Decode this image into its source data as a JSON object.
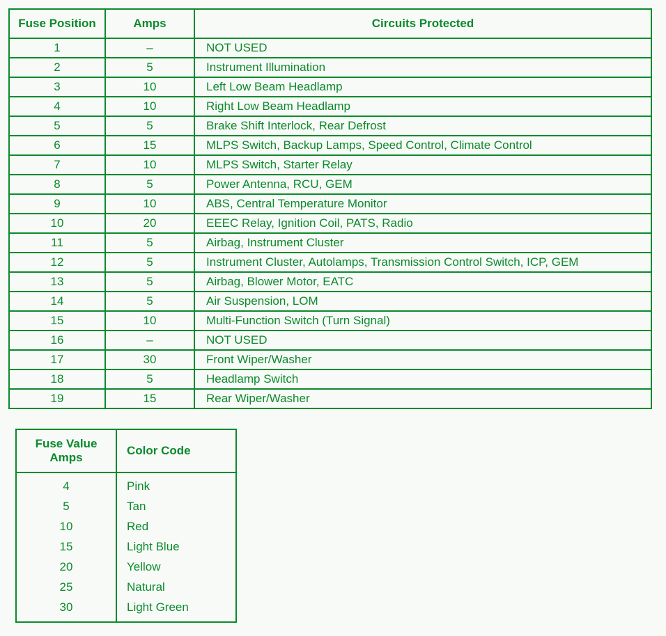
{
  "colors": {
    "border": "#0b8a2d",
    "text": "#0b8a2d",
    "background": "#f8faf7"
  },
  "mainTable": {
    "headers": {
      "position": "Fuse Position",
      "amps": "Amps",
      "circuits": "Circuits Protected"
    },
    "rows": [
      {
        "position": "1",
        "amps": "–",
        "circuits": "NOT USED"
      },
      {
        "position": "2",
        "amps": "5",
        "circuits": "Instrument Illumination"
      },
      {
        "position": "3",
        "amps": "10",
        "circuits": "Left Low Beam Headlamp"
      },
      {
        "position": "4",
        "amps": "10",
        "circuits": "Right Low Beam Headlamp"
      },
      {
        "position": "5",
        "amps": "5",
        "circuits": "Brake Shift Interlock, Rear Defrost"
      },
      {
        "position": "6",
        "amps": "15",
        "circuits": "MLPS Switch, Backup Lamps, Speed Control, Climate Control"
      },
      {
        "position": "7",
        "amps": "10",
        "circuits": "MLPS Switch, Starter Relay"
      },
      {
        "position": "8",
        "amps": "5",
        "circuits": "Power Antenna, RCU, GEM"
      },
      {
        "position": "9",
        "amps": "10",
        "circuits": "ABS, Central Temperature Monitor"
      },
      {
        "position": "10",
        "amps": "20",
        "circuits": "EEEC Relay, Ignition Coil, PATS, Radio"
      },
      {
        "position": "11",
        "amps": "5",
        "circuits": "Airbag, Instrument Cluster"
      },
      {
        "position": "12",
        "amps": "5",
        "circuits": "Instrument Cluster, Autolamps, Transmission Control Switch, ICP, GEM"
      },
      {
        "position": "13",
        "amps": "5",
        "circuits": "Airbag, Blower Motor, EATC"
      },
      {
        "position": "14",
        "amps": "5",
        "circuits": "Air Suspension, LOM"
      },
      {
        "position": "15",
        "amps": "10",
        "circuits": "Multi-Function Switch (Turn Signal)"
      },
      {
        "position": "16",
        "amps": "–",
        "circuits": "NOT USED"
      },
      {
        "position": "17",
        "amps": "30",
        "circuits": "Front Wiper/Washer"
      },
      {
        "position": "18",
        "amps": "5",
        "circuits": "Headlamp Switch"
      },
      {
        "position": "19",
        "amps": "15",
        "circuits": "Rear Wiper/Washer"
      }
    ]
  },
  "colorTable": {
    "headers": {
      "fuseValue": "Fuse Value Amps",
      "colorCode": "Color Code"
    },
    "rows": [
      {
        "amps": "4",
        "color": "Pink"
      },
      {
        "amps": "5",
        "color": "Tan"
      },
      {
        "amps": "10",
        "color": "Red"
      },
      {
        "amps": "15",
        "color": "Light Blue"
      },
      {
        "amps": "20",
        "color": "Yellow"
      },
      {
        "amps": "25",
        "color": "Natural"
      },
      {
        "amps": "30",
        "color": "Light Green"
      }
    ]
  }
}
